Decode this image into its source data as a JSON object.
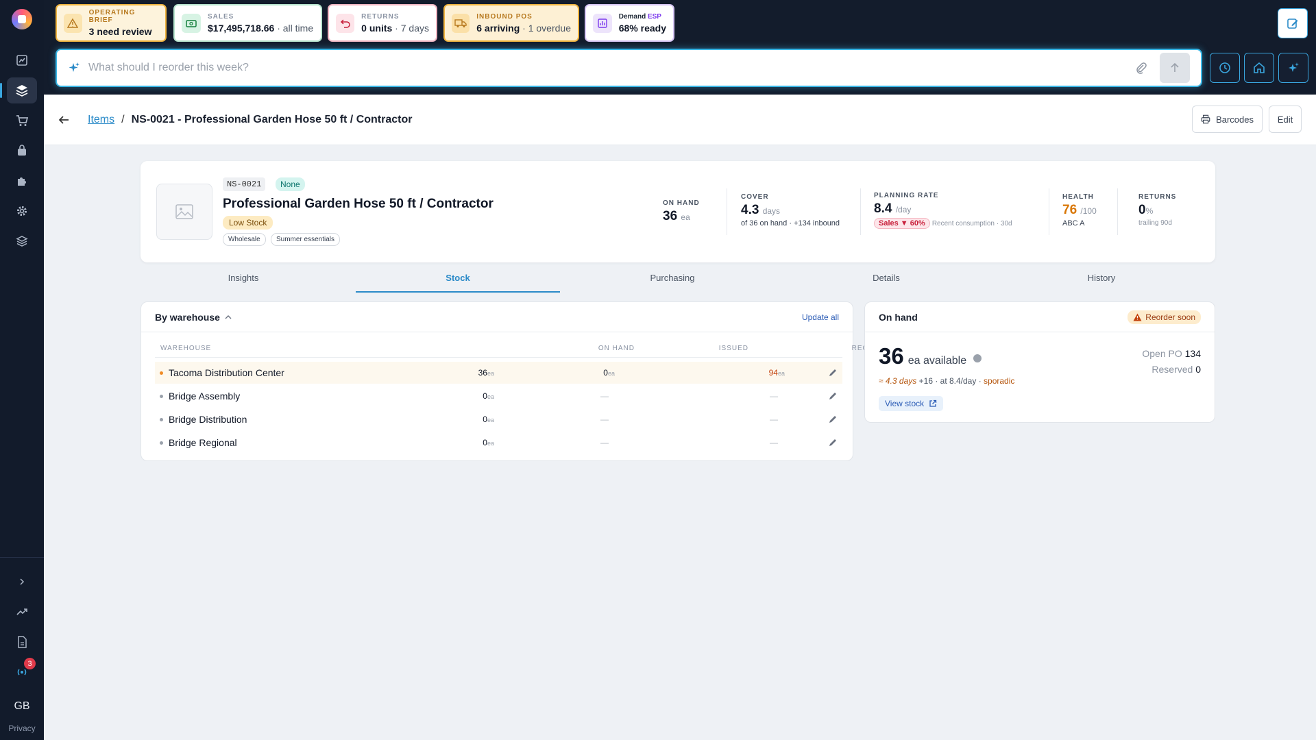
{
  "topbar": {
    "cards": [
      {
        "key": "OPERATING BRIEF",
        "value": "3 need review",
        "sub": ""
      },
      {
        "key": "SALES",
        "value": "$17,495,718.66",
        "sub": " · all time"
      },
      {
        "key": "RETURNS",
        "value": "0 units",
        "sub": " · 7 days"
      },
      {
        "key": "INBOUND POS",
        "value": "6 arriving",
        "sub": " · 1 overdue"
      },
      {
        "key": "Demand",
        "key_accent": "ESP",
        "value": "68% ready",
        "sub": ""
      }
    ],
    "search_placeholder": "What should I reorder this week?"
  },
  "sidebar": {
    "notification_count": "3",
    "user_initials": "GB",
    "privacy_label": "Privacy"
  },
  "breadcrumb": {
    "parent": "Items",
    "separator": "/",
    "current": "NS-0021 - Professional Garden Hose 50 ft / Contractor"
  },
  "header_actions": {
    "barcodes": "Barcodes",
    "edit": "Edit"
  },
  "item": {
    "sku": "NS-0021",
    "class_badge": "None",
    "title": "Professional Garden Hose 50 ft / Contractor",
    "status": "Low Stock",
    "tags": [
      "Wholesale",
      "Summer essentials"
    ]
  },
  "metrics": {
    "on_hand": {
      "label": "ON HAND",
      "value": "36",
      "unit": "ea"
    },
    "cover": {
      "label": "COVER",
      "value": "4.3",
      "unit": "days",
      "sub": "of 36 on hand · +134 inbound"
    },
    "planning": {
      "label": "PLANNING RATE",
      "value": "8.4",
      "unit": "/day",
      "badge": "Sales ▼ 60%",
      "sub": "Recent consumption · 30d"
    },
    "health": {
      "label": "HEALTH",
      "value": "76",
      "unit": "/100",
      "sub": "ABC A"
    },
    "returns": {
      "label": "RETURNS",
      "value": "0",
      "unit": "%",
      "sub": "trailing 90d"
    }
  },
  "tabs": [
    "Insights",
    "Stock",
    "Purchasing",
    "Details",
    "History"
  ],
  "warehouse_panel": {
    "title": "By warehouse",
    "update_all": "Update all",
    "columns": [
      "WAREHOUSE",
      "ON HAND",
      "ISSUED",
      "REORDER POINT"
    ],
    "unit": "ea",
    "dash": "—",
    "rows": [
      {
        "name": "Tacoma Distribution Center",
        "on_hand": "36",
        "issued": "0",
        "reorder": "94"
      },
      {
        "name": "Bridge Assembly",
        "on_hand": "0",
        "issued": "—",
        "reorder": "—"
      },
      {
        "name": "Bridge Distribution",
        "on_hand": "0",
        "issued": "—",
        "reorder": "—"
      },
      {
        "name": "Bridge Regional",
        "on_hand": "0",
        "issued": "—",
        "reorder": "—"
      }
    ]
  },
  "onhand_panel": {
    "title": "On hand",
    "alert": "Reorder soon",
    "available_value": "36",
    "available_label": "ea available",
    "open_po_label": "Open PO",
    "open_po_value": "134",
    "reserved_label": "Reserved",
    "reserved_value": "0",
    "coverage_days": "≈ 4.3 days",
    "coverage_rest": " +16 · at 8.4/day · ",
    "coverage_pattern": "sporadic",
    "view_stock": "View stock"
  },
  "colors": {
    "accent": "#2a8ac8",
    "sidebar_bg": "#121b2b",
    "warning": "#f0b540",
    "danger": "#c81e3a"
  }
}
